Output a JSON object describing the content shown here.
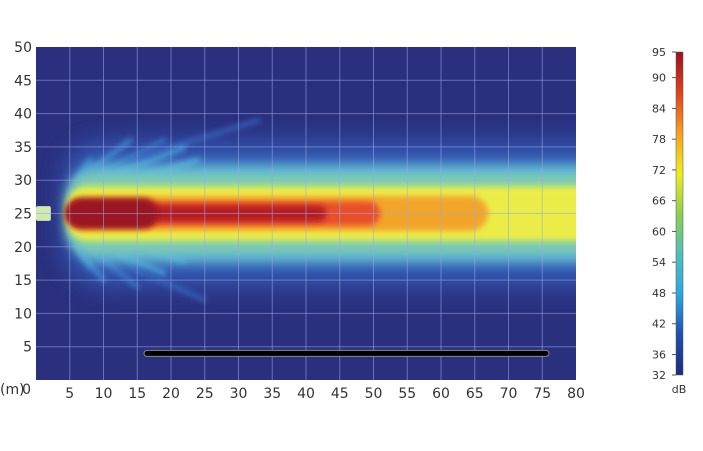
{
  "chart_data": {
    "type": "heatmap",
    "title": "",
    "x_unit_label": "(m)",
    "xlim": [
      0,
      80
    ],
    "ylim": [
      0,
      50
    ],
    "x_ticks": [
      "0",
      "5",
      "10",
      "15",
      "20",
      "25",
      "30",
      "35",
      "40",
      "45",
      "50",
      "55",
      "60",
      "65",
      "70",
      "75",
      "80"
    ],
    "y_ticks": [
      "5",
      "10",
      "15",
      "20",
      "25",
      "30",
      "35",
      "40",
      "45",
      "50"
    ],
    "grid": true,
    "colormap": "jet",
    "colorbar": {
      "unit": "dB",
      "range": [
        32,
        95
      ],
      "ticks": [
        "95",
        "90",
        "84",
        "78",
        "72",
        "66",
        "60",
        "54",
        "48",
        "42",
        "36",
        "32"
      ],
      "colors": [
        "#1f2a7a",
        "#1f4fb0",
        "#2aa8e0",
        "#50c0b8",
        "#8fcf50",
        "#f0ec20",
        "#f4a020",
        "#e04020",
        "#9a1020"
      ]
    },
    "beam": {
      "source": {
        "x": 1,
        "y": 25
      },
      "axis_y": 25,
      "peak_zone_x": [
        5,
        43
      ],
      "orange_zone_x": [
        5,
        67
      ],
      "yellow_zone_x": [
        5,
        80
      ]
    },
    "bar": {
      "x": [
        16,
        76
      ],
      "y": 4,
      "color": "#000000"
    },
    "background_color": "#2a2f7e"
  }
}
